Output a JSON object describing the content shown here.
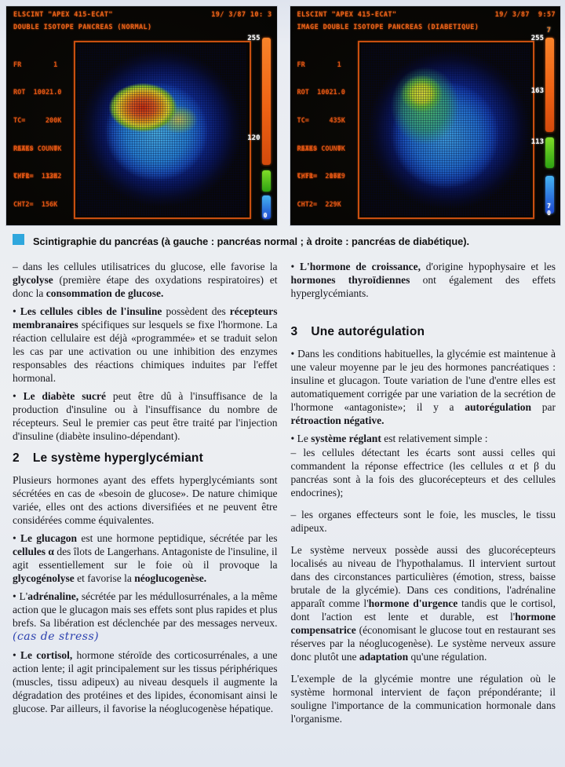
{
  "scans": {
    "left": {
      "device": "ELSCINT \"APEX 415-ECAT\"",
      "datetime": "19/ 3/87 10: 3",
      "title": "DOUBLE ISOTOPE PANCREAS (NORMAL)",
      "stats": [
        "FR        1",
        "ROT  10021.0",
        "TC=     200K",
        "RATE=     0K",
        "T/FR=   1202"
      ],
      "peaks_label": "PEAKS COUNT",
      "cht1": "CHT1=  133K",
      "cht2": "CHT2=  156K",
      "scale_labels": {
        "top": "255",
        "mid": "120",
        "bottom": "0"
      }
    },
    "right": {
      "device": "ELSCINT \"APEX 415-ECAT\"",
      "datetime": "19/ 3/87  9:57",
      "title": "IMAGE DOUBLE ISOTOPE PANCREAS (DIABETIQUE)",
      "stats": [
        "FR        1",
        "ROT  10021.0",
        "TC=     435K",
        "RATE=     0K",
        "T/FR=   1729"
      ],
      "peaks_label": "PEAKS COUNT",
      "cht1": "CHT1=  206K",
      "cht2": "CHT2=  229K",
      "scale_labels": {
        "pre_top": "7",
        "top": "255",
        "mid": "163",
        "mid2": "113",
        "low": "7",
        "bottom": "0"
      }
    }
  },
  "caption": "Scintigraphie du pancréas (à gauche : pancréas normal ; à droite : pancréas de diabétique).",
  "columns": {
    "left": {
      "blocks": [
        {
          "segments": [
            {
              "t": "–  dans les cellules utilisatrices du glucose, elle favorise la "
            },
            {
              "t": "glycolyse",
              "b": true
            },
            {
              "t": " (première étape des oxydations respiratoires) et donc la "
            },
            {
              "t": "consommation de glucose.",
              "b": true
            }
          ]
        },
        {
          "segments": [
            {
              "t": "• "
            },
            {
              "t": "Les cellules cibles de l'insuline",
              "b": true
            },
            {
              "t": " possèdent des "
            },
            {
              "t": "récepteurs membranaires",
              "b": true
            },
            {
              "t": " spécifiques sur lesquels se fixe l'hormone. La réaction cellulaire est déjà «programmée» et se traduit selon les cas par une activation ou une inhibition des enzymes responsables des réactions chimiques induites par l'effet hormonal."
            }
          ]
        },
        {
          "segments": [
            {
              "t": "• "
            },
            {
              "t": "Le diabète sucré",
              "b": true
            },
            {
              "t": " peut être dû à l'insuffisance de la production d'insuline ou à l'insuffisance du nombre de récepteurs. Seul le premier cas peut être traité par l'injection d'insuline (diabète insulino-dépendant)."
            }
          ]
        },
        {
          "num": "2",
          "text": "Le système hyperglycémiant"
        },
        {
          "segments": [
            {
              "t": "Plusieurs hormones ayant des effets hyperglycémiants sont sécrétées en cas de «besoin de glucose». De nature chimique variée, elles ont des actions diversifiées et ne peuvent être considérées comme équivalentes."
            }
          ]
        },
        {
          "segments": [
            {
              "t": "• "
            },
            {
              "t": "Le glucagon",
              "b": true
            },
            {
              "t": " est une hormone peptidique, sécrétée par les "
            },
            {
              "t": "cellules α",
              "b": true
            },
            {
              "t": " des îlots de Langerhans. Antagoniste de l'insuline, il agit essentiellement sur le foie où il provoque la "
            },
            {
              "t": "glycogénolyse",
              "b": true
            },
            {
              "t": " et favorise la "
            },
            {
              "t": "néoglucogenèse.",
              "b": true
            }
          ]
        },
        {
          "segments": [
            {
              "t": "• L'"
            },
            {
              "t": "adrénaline,",
              "b": true
            },
            {
              "t": " sécrétée par les médullosurrénales, a la même action que le glucagon mais ses effets sont plus rapides et plus brefs. Sa libération est déclenchée par des messages nerveux. "
            },
            {
              "t": "(cas de stress)",
              "h": true
            }
          ]
        },
        {
          "segments": [
            {
              "t": "• "
            },
            {
              "t": "Le cortisol,",
              "b": true
            },
            {
              "t": " hormone stéroïde des corticosurrénales, a une action lente; il agit principalement sur les tissus périphériques (muscles, tissu adipeux) au niveau desquels il augmente la dégradation des protéines et des lipides, économisant ainsi le glucose. Par ailleurs, il favorise la néoglucogenèse hépatique."
            }
          ]
        }
      ]
    },
    "right": {
      "blocks": [
        {
          "segments": [
            {
              "t": "• "
            },
            {
              "t": "L'hormone de croissance,",
              "b": true
            },
            {
              "t": " d'origine hypophysaire et les "
            },
            {
              "t": "hormones thyroïdiennes",
              "b": true
            },
            {
              "t": " ont également des effets hyperglycémiants."
            }
          ]
        },
        {
          "num": "3",
          "text": "Une autorégulation"
        },
        {
          "segments": [
            {
              "t": "• Dans les conditions habituelles, la glycémie est maintenue à une valeur moyenne par le jeu des hormones pancréatiques : insuline et glucagon. Toute variation de l'une d'entre elles est automatiquement corrigée par une variation de la secrétion de l'hormone «antagoniste»; il y a "
            },
            {
              "t": "autorégulation",
              "b": true
            },
            {
              "t": " par "
            },
            {
              "t": "rétroaction négative.",
              "b": true
            }
          ]
        },
        {
          "segments": [
            {
              "t": "• Le "
            },
            {
              "t": "système réglant",
              "b": true
            },
            {
              "t": " est relativement simple :"
            }
          ]
        },
        {
          "segments": [
            {
              "t": "–  les cellules détectant les écarts sont aussi celles qui commandent la réponse effectrice (les cellules α et β du pancréas sont à la fois des glucorécepteurs et des cellules endocrines);"
            }
          ]
        },
        {
          "segments": [
            {
              "t": "–  les organes effecteurs sont le foie, les muscles, le tissu adipeux."
            }
          ]
        },
        {
          "segments": [
            {
              "t": "Le système nerveux possède aussi des glucorécepteurs localisés au niveau de l'hypothalamus. Il intervient surtout dans des circonstances particulières (émotion, stress, baisse brutale de la glycémie). Dans ces conditions, l'adrénaline apparaît comme l'"
            },
            {
              "t": "hormone d'urgence",
              "b": true
            },
            {
              "t": " tandis que le cortisol, dont l'action est lente et durable, est l'"
            },
            {
              "t": "hormone compensatrice",
              "b": true
            },
            {
              "t": " (économisant le glucose tout en restaurant ses réserves par la néoglucogenèse). Le système nerveux assure donc plutôt une "
            },
            {
              "t": "adaptation",
              "b": true
            },
            {
              "t": " qu'une régulation."
            }
          ]
        },
        {
          "segments": [
            {
              "t": "L'exemple de la glycémie montre une régulation où le système hormonal intervient de façon prépondérante; il souligne l'importance de la communication hormonale dans l'organisme."
            }
          ]
        }
      ]
    }
  }
}
